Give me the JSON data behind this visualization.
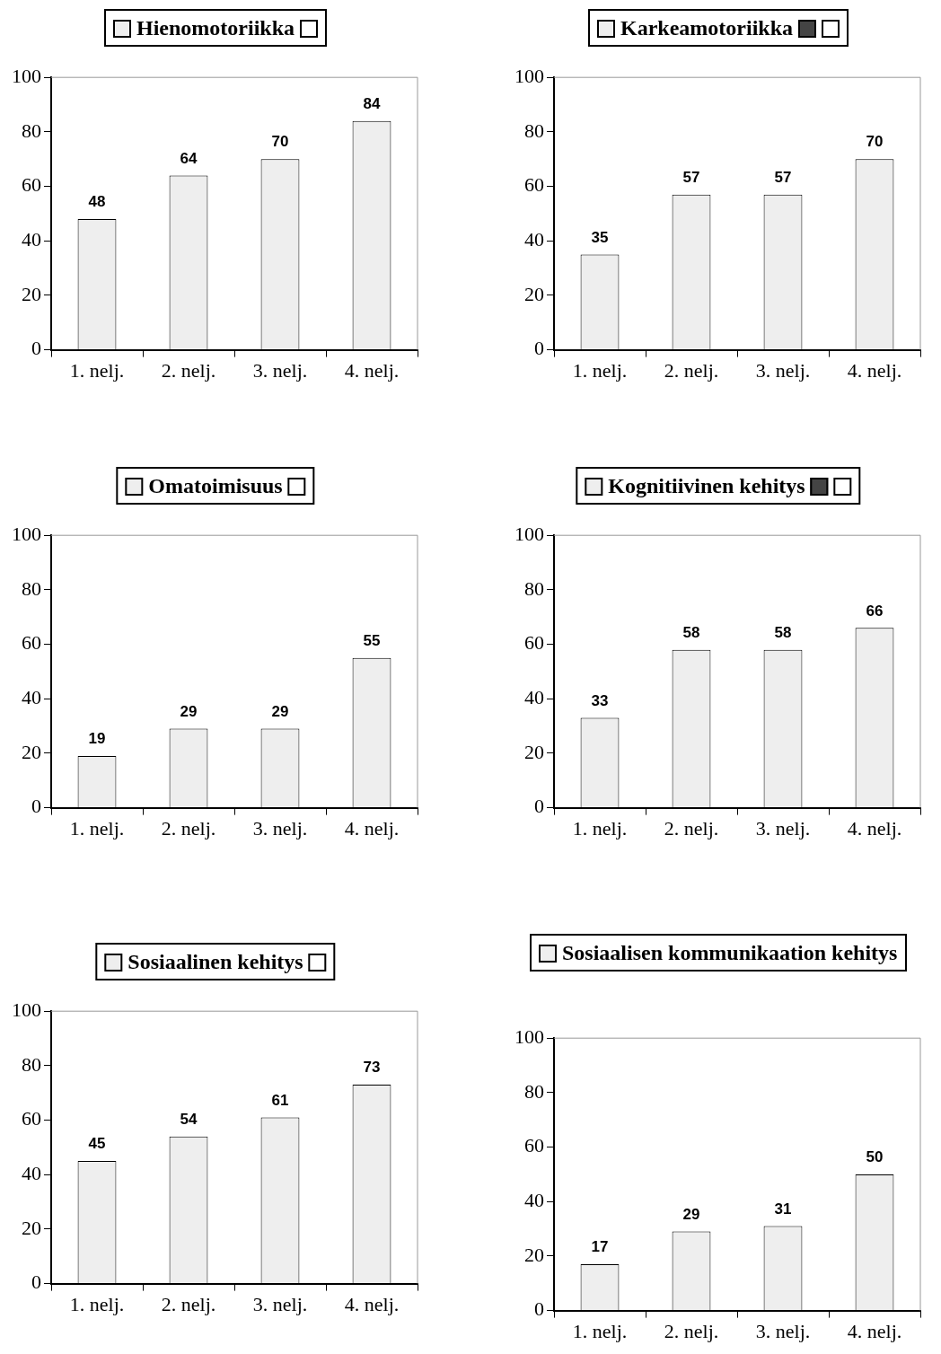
{
  "chart_data": [
    {
      "type": "bar",
      "title": "Hienomotoriikka",
      "categories": [
        "1. nelj.",
        "2. nelj.",
        "3. nelj.",
        "4. nelj."
      ],
      "values": [
        48,
        64,
        70,
        84
      ],
      "color": "#eeeeee",
      "ylim": [
        0,
        100
      ],
      "yticks": [
        0,
        20,
        40,
        60,
        80,
        100
      ],
      "data_labels": true,
      "grid": false
    },
    {
      "type": "bar",
      "title": "Karkeamotoriikka",
      "categories": [
        "1. nelj.",
        "2. nelj.",
        "3. nelj.",
        "4. nelj."
      ],
      "values": [
        35,
        57,
        57,
        70
      ],
      "color": "#eeeeee",
      "ylim": [
        0,
        100
      ],
      "yticks": [
        0,
        20,
        40,
        60,
        80,
        100
      ],
      "data_labels": true,
      "grid": false
    },
    {
      "type": "bar",
      "title": "Omatoimisuus",
      "categories": [
        "1. nelj.",
        "2. nelj.",
        "3. nelj.",
        "4. nelj."
      ],
      "values": [
        19,
        29,
        29,
        55
      ],
      "color": "#eeeeee",
      "ylim": [
        0,
        100
      ],
      "yticks": [
        0,
        20,
        40,
        60,
        80,
        100
      ],
      "data_labels": true,
      "grid": false
    },
    {
      "type": "bar",
      "title": "Kognitiivinen kehitys",
      "categories": [
        "1. nelj.",
        "2. nelj.",
        "3. nelj.",
        "4. nelj."
      ],
      "values": [
        33,
        58,
        58,
        66
      ],
      "color": "#eeeeee",
      "ylim": [
        0,
        100
      ],
      "yticks": [
        0,
        20,
        40,
        60,
        80,
        100
      ],
      "data_labels": true,
      "grid": false
    },
    {
      "type": "bar",
      "title": "Sosiaalinen kehitys",
      "categories": [
        "1. nelj.",
        "2. nelj.",
        "3. nelj.",
        "4. nelj."
      ],
      "values": [
        45,
        54,
        61,
        73
      ],
      "color": "#eeeeee",
      "ylim": [
        0,
        100
      ],
      "yticks": [
        0,
        20,
        40,
        60,
        80,
        100
      ],
      "data_labels": true,
      "grid": false
    },
    {
      "type": "bar",
      "title": "Sosiaalisen kommunikaation kehitys",
      "categories": [
        "1. nelj.",
        "2. nelj.",
        "3. nelj.",
        "4. nelj."
      ],
      "values": [
        17,
        29,
        31,
        50
      ],
      "color": "#eeeeee",
      "ylim": [
        0,
        100
      ],
      "yticks": [
        0,
        20,
        40,
        60,
        80,
        100
      ],
      "data_labels": true,
      "grid": false
    }
  ]
}
